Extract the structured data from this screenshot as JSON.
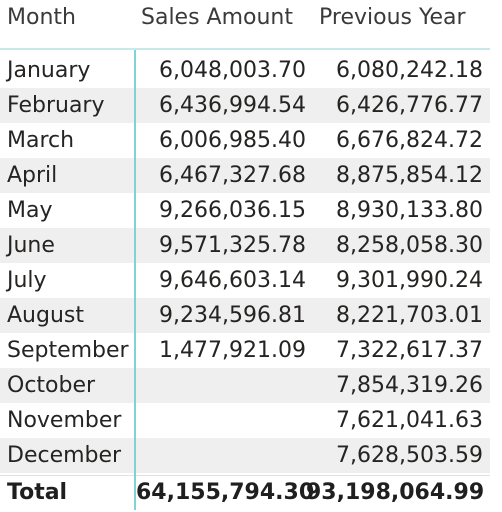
{
  "table": {
    "headers": {
      "month": "Month",
      "sales": "Sales Amount",
      "prev": "Previous Year"
    },
    "rows": [
      {
        "month": "January",
        "sales": "6,048,003.70",
        "prev": "6,080,242.18"
      },
      {
        "month": "February",
        "sales": "6,436,994.54",
        "prev": "6,426,776.77"
      },
      {
        "month": "March",
        "sales": "6,006,985.40",
        "prev": "6,676,824.72"
      },
      {
        "month": "April",
        "sales": "6,467,327.68",
        "prev": "8,875,854.12"
      },
      {
        "month": "May",
        "sales": "9,266,036.15",
        "prev": "8,930,133.80"
      },
      {
        "month": "June",
        "sales": "9,571,325.78",
        "prev": "8,258,058.30"
      },
      {
        "month": "July",
        "sales": "9,646,603.14",
        "prev": "9,301,990.24"
      },
      {
        "month": "August",
        "sales": "9,234,596.81",
        "prev": "8,221,703.01"
      },
      {
        "month": "September",
        "sales": "1,477,921.09",
        "prev": "7,322,617.37"
      },
      {
        "month": "October",
        "sales": "",
        "prev": "7,854,319.26"
      },
      {
        "month": "November",
        "sales": "",
        "prev": "7,621,041.63"
      },
      {
        "month": "December",
        "sales": "",
        "prev": "7,628,503.59"
      }
    ],
    "total": {
      "label": "Total",
      "sales": "64,155,794.30",
      "prev": "93,198,064.99"
    },
    "colors": {
      "divider": "#7fd3d3",
      "row_shade": "#efefef",
      "text": "#252423"
    }
  }
}
